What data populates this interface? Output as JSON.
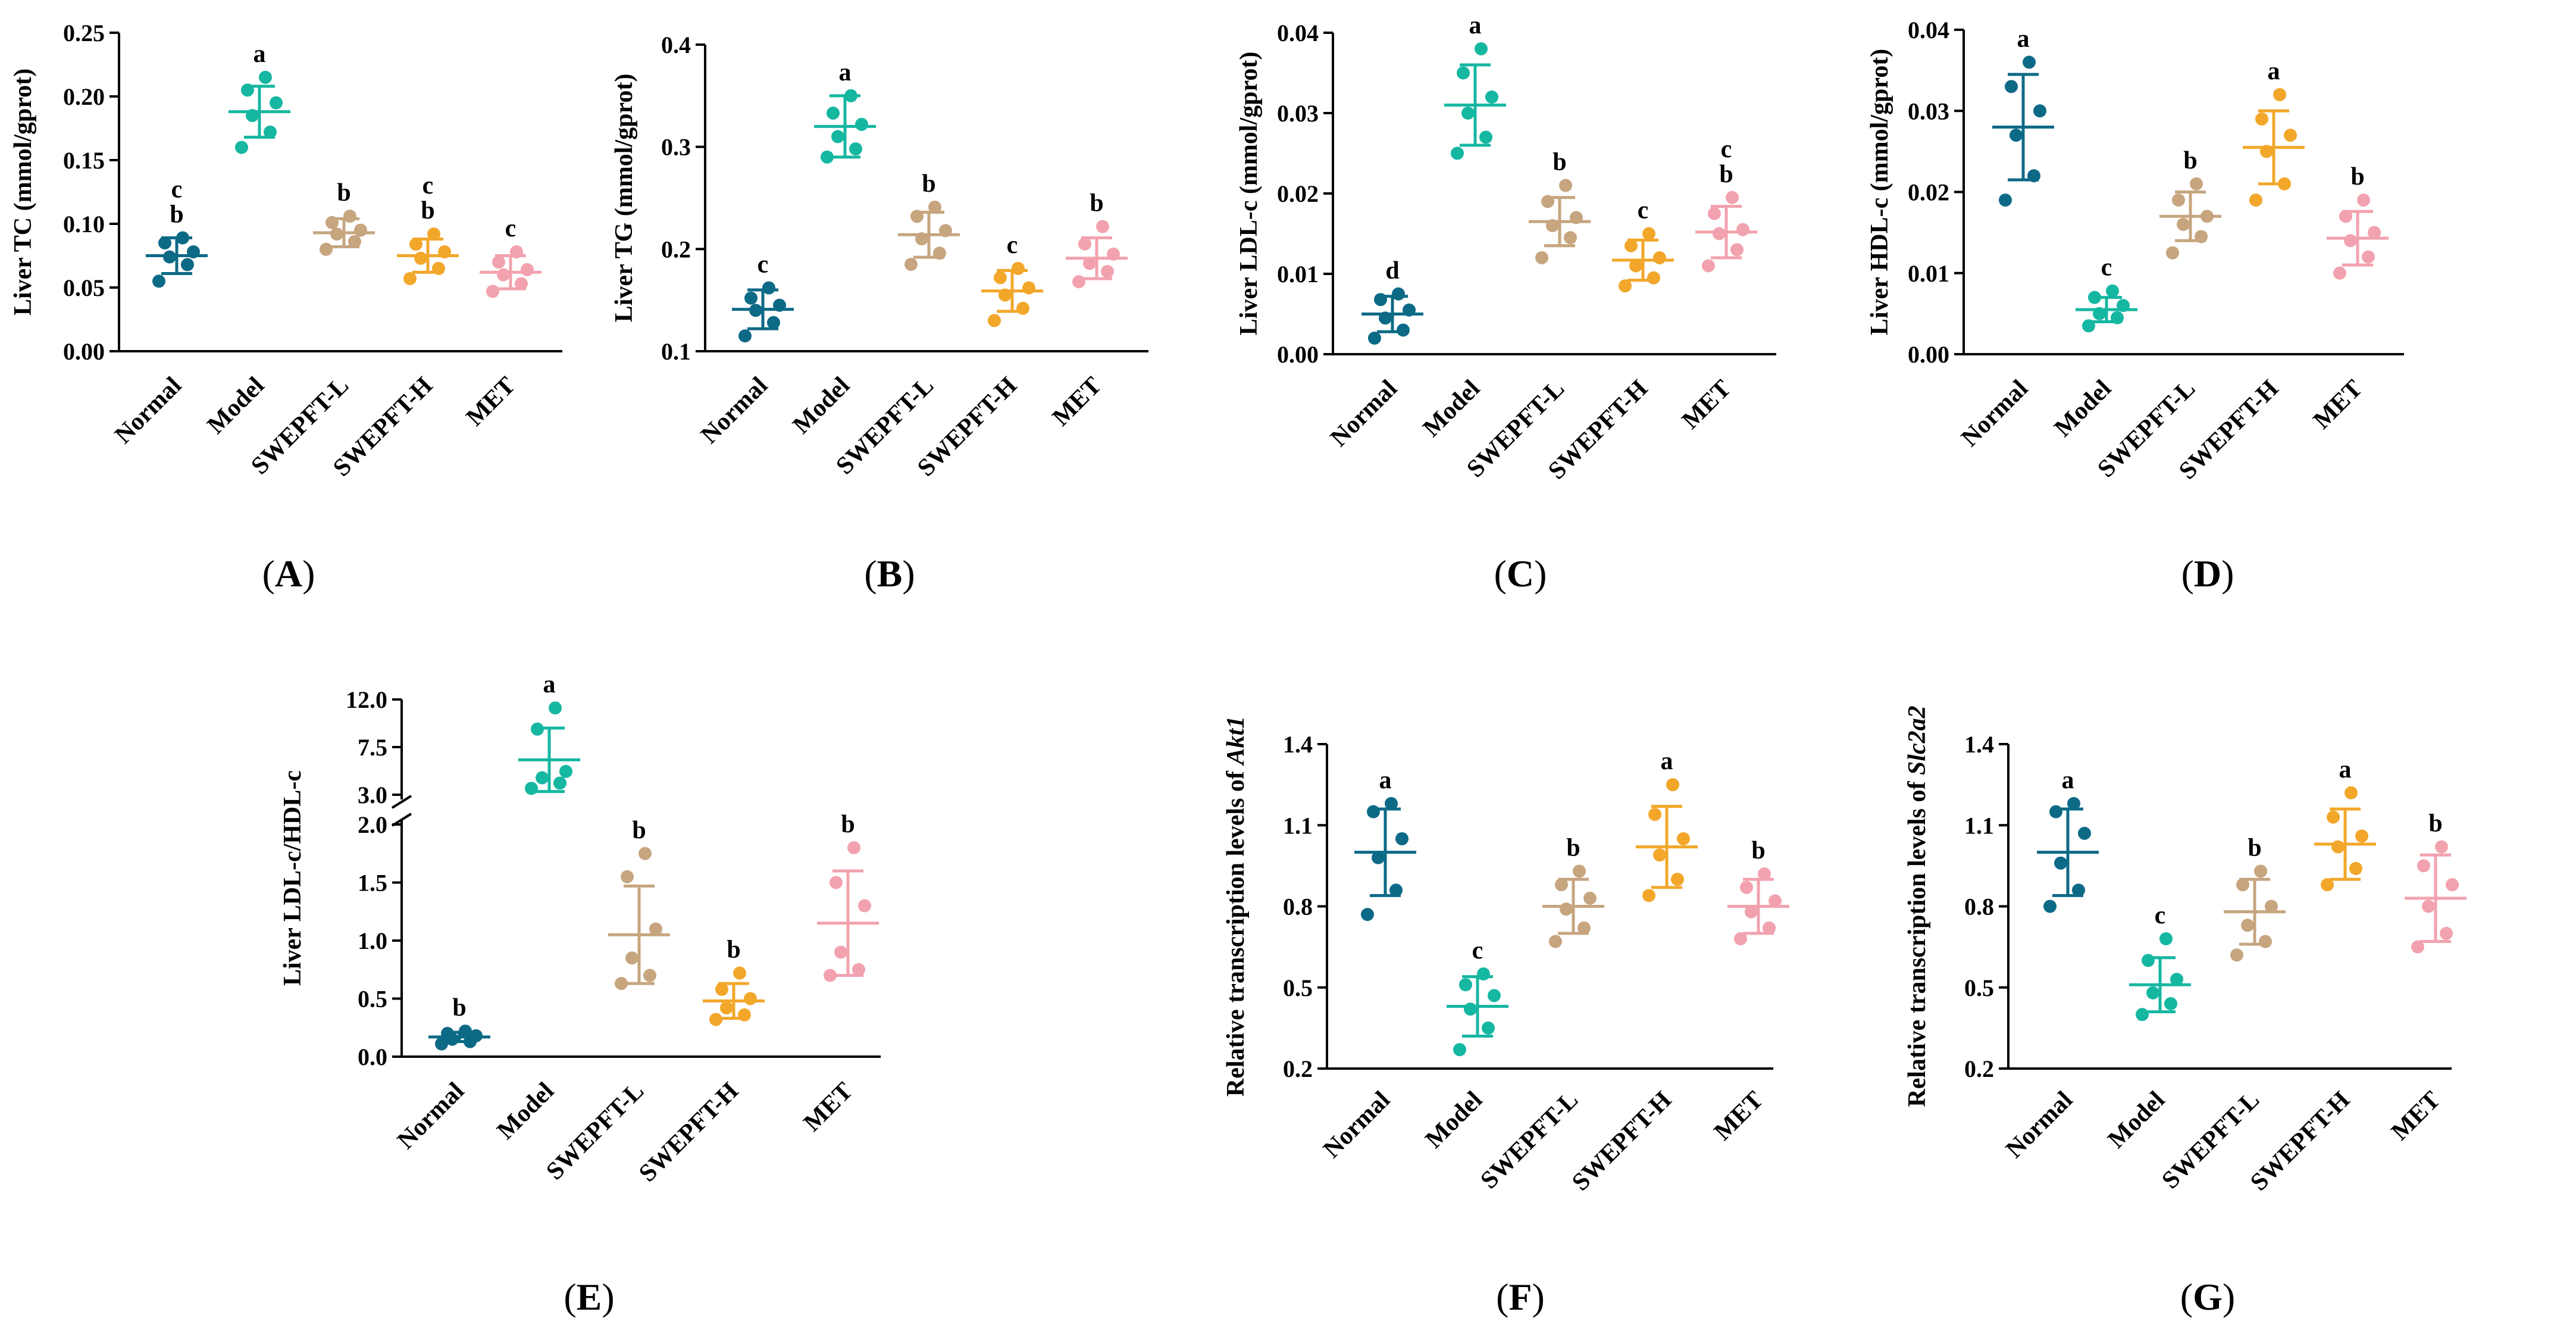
{
  "figure": {
    "group_colors": {
      "Normal": "#0d6a86",
      "Model": "#16b7a1",
      "SWEPFT-L": "#c6a57f",
      "SWEPFT-H": "#f2a72a",
      "MET": "#f2a2ae"
    }
  },
  "chart_data": [
    {
      "panel": "A",
      "type": "scatter",
      "ylabel": "Liver TC (mmol/gprot)",
      "ylim": [
        0,
        0.25
      ],
      "yticks": [
        "0.00",
        "0.05",
        "0.10",
        "0.15",
        "0.20",
        "0.25"
      ],
      "categories": [
        "Normal",
        "Model",
        "SWEPFT-L",
        "SWEPFT-H",
        "MET"
      ],
      "groups": [
        {
          "name": "Normal",
          "mean": 0.075,
          "sd": 0.014,
          "points": [
            0.055,
            0.068,
            0.074,
            0.078,
            0.085,
            0.089
          ],
          "sig": [
            "c",
            "b"
          ]
        },
        {
          "name": "Model",
          "mean": 0.188,
          "sd": 0.02,
          "points": [
            0.16,
            0.172,
            0.185,
            0.195,
            0.205,
            0.215
          ],
          "sig": [
            "a"
          ]
        },
        {
          "name": "SWEPFT-L",
          "mean": 0.093,
          "sd": 0.011,
          "points": [
            0.08,
            0.086,
            0.092,
            0.095,
            0.101,
            0.106
          ],
          "sig": [
            "b"
          ]
        },
        {
          "name": "SWEPFT-H",
          "mean": 0.075,
          "sd": 0.013,
          "points": [
            0.057,
            0.065,
            0.073,
            0.078,
            0.084,
            0.092
          ],
          "sig": [
            "c",
            "b"
          ]
        },
        {
          "name": "MET",
          "mean": 0.062,
          "sd": 0.013,
          "points": [
            0.047,
            0.053,
            0.06,
            0.064,
            0.07,
            0.078
          ],
          "sig": [
            "c"
          ]
        }
      ]
    },
    {
      "panel": "B",
      "type": "scatter",
      "ylabel": "Liver TG (mmol/gprot)",
      "ylim": [
        0.1,
        0.4
      ],
      "yticks": [
        "0.1",
        "0.2",
        "0.3",
        "0.4"
      ],
      "categories": [
        "Normal",
        "Model",
        "SWEPFT-L",
        "SWEPFT-H",
        "MET"
      ],
      "groups": [
        {
          "name": "Normal",
          "mean": 0.141,
          "sd": 0.019,
          "points": [
            0.115,
            0.128,
            0.14,
            0.145,
            0.152,
            0.162
          ],
          "sig": [
            "c"
          ]
        },
        {
          "name": "Model",
          "mean": 0.32,
          "sd": 0.03,
          "points": [
            0.29,
            0.298,
            0.31,
            0.322,
            0.333,
            0.35
          ],
          "sig": [
            "a"
          ]
        },
        {
          "name": "SWEPFT-L",
          "mean": 0.214,
          "sd": 0.022,
          "points": [
            0.185,
            0.196,
            0.21,
            0.218,
            0.232,
            0.241
          ],
          "sig": [
            "b"
          ]
        },
        {
          "name": "SWEPFT-H",
          "mean": 0.159,
          "sd": 0.02,
          "points": [
            0.13,
            0.142,
            0.155,
            0.162,
            0.172,
            0.181
          ],
          "sig": [
            "c"
          ]
        },
        {
          "name": "MET",
          "mean": 0.191,
          "sd": 0.02,
          "points": [
            0.168,
            0.178,
            0.186,
            0.195,
            0.205,
            0.222
          ],
          "sig": [
            "b"
          ]
        }
      ]
    },
    {
      "panel": "C",
      "type": "scatter",
      "ylabel": "Liver LDL-c (mmol/gprot)",
      "ylim": [
        0,
        0.04
      ],
      "yticks": [
        "0.00",
        "0.01",
        "0.02",
        "0.03",
        "0.04"
      ],
      "categories": [
        "Normal",
        "Model",
        "SWEPFT-L",
        "SWEPFT-H",
        "MET"
      ],
      "groups": [
        {
          "name": "Normal",
          "mean": 0.005,
          "sd": 0.0022,
          "points": [
            0.002,
            0.003,
            0.0045,
            0.0055,
            0.0068,
            0.0075
          ],
          "sig": [
            "d"
          ]
        },
        {
          "name": "Model",
          "mean": 0.031,
          "sd": 0.005,
          "points": [
            0.025,
            0.027,
            0.03,
            0.032,
            0.035,
            0.038
          ],
          "sig": [
            "a"
          ]
        },
        {
          "name": "SWEPFT-L",
          "mean": 0.0165,
          "sd": 0.003,
          "points": [
            0.012,
            0.0145,
            0.016,
            0.017,
            0.019,
            0.021
          ],
          "sig": [
            "b"
          ]
        },
        {
          "name": "SWEPFT-H",
          "mean": 0.0117,
          "sd": 0.0025,
          "points": [
            0.0085,
            0.0095,
            0.011,
            0.012,
            0.0135,
            0.015
          ],
          "sig": [
            "c"
          ]
        },
        {
          "name": "MET",
          "mean": 0.0152,
          "sd": 0.0032,
          "points": [
            0.011,
            0.013,
            0.015,
            0.0155,
            0.0175,
            0.0195
          ],
          "sig": [
            "c",
            "b"
          ]
        }
      ]
    },
    {
      "panel": "D",
      "type": "scatter",
      "ylabel": "Liver HDL-c (mmol/gprot)",
      "ylim": [
        0,
        0.04
      ],
      "yticks": [
        "0.00",
        "0.01",
        "0.02",
        "0.03",
        "0.04"
      ],
      "categories": [
        "Normal",
        "Model",
        "SWEPFT-L",
        "SWEPFT-H",
        "MET"
      ],
      "groups": [
        {
          "name": "Normal",
          "mean": 0.028,
          "sd": 0.0065,
          "points": [
            0.019,
            0.022,
            0.027,
            0.03,
            0.033,
            0.036
          ],
          "sig": [
            "a"
          ]
        },
        {
          "name": "Model",
          "mean": 0.0055,
          "sd": 0.0015,
          "points": [
            0.0035,
            0.0045,
            0.005,
            0.006,
            0.007,
            0.0078
          ],
          "sig": [
            "c"
          ]
        },
        {
          "name": "SWEPFT-L",
          "mean": 0.017,
          "sd": 0.003,
          "points": [
            0.0125,
            0.0145,
            0.016,
            0.017,
            0.019,
            0.021
          ],
          "sig": [
            "b"
          ]
        },
        {
          "name": "SWEPFT-H",
          "mean": 0.0255,
          "sd": 0.0045,
          "points": [
            0.019,
            0.021,
            0.025,
            0.027,
            0.029,
            0.032
          ],
          "sig": [
            "a"
          ]
        },
        {
          "name": "MET",
          "mean": 0.0143,
          "sd": 0.0033,
          "points": [
            0.01,
            0.012,
            0.014,
            0.015,
            0.017,
            0.019
          ],
          "sig": [
            "b"
          ]
        }
      ]
    },
    {
      "panel": "E",
      "type": "scatter",
      "ylabel": "Liver LDL-c/HDL-c",
      "axis_break": true,
      "ylim_lower": [
        0,
        2.0
      ],
      "ylim_upper": [
        3.0,
        12.0
      ],
      "yticks_lower": [
        "0.0",
        "0.5",
        "1.0",
        "1.5",
        "2.0"
      ],
      "yticks_upper": [
        "3.0",
        "7.5",
        "12.0"
      ],
      "categories": [
        "Normal",
        "Model",
        "SWEPFT-L",
        "SWEPFT-H",
        "MET"
      ],
      "groups": [
        {
          "name": "Normal",
          "mean": 0.17,
          "sd": 0.04,
          "points": [
            0.11,
            0.13,
            0.15,
            0.18,
            0.2,
            0.22
          ],
          "sig": [
            "b"
          ]
        },
        {
          "name": "Model",
          "mean": 6.3,
          "sd": 3.0,
          "points": [
            3.6,
            4.1,
            4.6,
            5.2,
            9.2,
            11.2
          ],
          "sig": [
            "a"
          ]
        },
        {
          "name": "SWEPFT-L",
          "mean": 1.05,
          "sd": 0.42,
          "points": [
            0.63,
            0.7,
            0.85,
            1.1,
            1.55,
            1.75
          ],
          "sig": [
            "b"
          ]
        },
        {
          "name": "SWEPFT-H",
          "mean": 0.48,
          "sd": 0.15,
          "points": [
            0.32,
            0.36,
            0.42,
            0.5,
            0.58,
            0.72
          ],
          "sig": [
            "b"
          ]
        },
        {
          "name": "MET",
          "mean": 1.15,
          "sd": 0.45,
          "points": [
            0.7,
            0.75,
            0.9,
            1.3,
            1.5,
            1.8
          ],
          "sig": [
            "b"
          ]
        }
      ]
    },
    {
      "panel": "F",
      "type": "scatter",
      "ylabel_prefix": "Relative transcription levels of ",
      "ylabel_gene": "Akt1",
      "ylim": [
        0.2,
        1.4
      ],
      "yticks": [
        "0.2",
        "0.5",
        "0.8",
        "1.1",
        "1.4"
      ],
      "categories": [
        "Normal",
        "Model",
        "SWEPFT-L",
        "SWEPFT-H",
        "MET"
      ],
      "groups": [
        {
          "name": "Normal",
          "mean": 1.0,
          "sd": 0.16,
          "points": [
            0.77,
            0.86,
            0.98,
            1.05,
            1.15,
            1.18
          ],
          "sig": [
            "a"
          ]
        },
        {
          "name": "Model",
          "mean": 0.43,
          "sd": 0.11,
          "points": [
            0.27,
            0.35,
            0.42,
            0.47,
            0.51,
            0.55
          ],
          "sig": [
            "c"
          ]
        },
        {
          "name": "SWEPFT-L",
          "mean": 0.8,
          "sd": 0.1,
          "points": [
            0.67,
            0.72,
            0.79,
            0.83,
            0.88,
            0.93
          ],
          "sig": [
            "b"
          ]
        },
        {
          "name": "SWEPFT-H",
          "mean": 1.02,
          "sd": 0.15,
          "points": [
            0.84,
            0.9,
            0.99,
            1.05,
            1.14,
            1.25
          ],
          "sig": [
            "a"
          ]
        },
        {
          "name": "MET",
          "mean": 0.8,
          "sd": 0.1,
          "points": [
            0.68,
            0.72,
            0.78,
            0.82,
            0.87,
            0.92
          ],
          "sig": [
            "b"
          ]
        }
      ]
    },
    {
      "panel": "G",
      "type": "scatter",
      "ylabel_prefix": "Relative transcription levels of ",
      "ylabel_gene": "Slc2a2",
      "ylim": [
        0.2,
        1.4
      ],
      "yticks": [
        "0.2",
        "0.5",
        "0.8",
        "1.1",
        "1.4"
      ],
      "categories": [
        "Normal",
        "Model",
        "SWEPFT-L",
        "SWEPFT-H",
        "MET"
      ],
      "groups": [
        {
          "name": "Normal",
          "mean": 1.0,
          "sd": 0.16,
          "points": [
            0.8,
            0.86,
            0.96,
            1.07,
            1.15,
            1.18
          ],
          "sig": [
            "a"
          ]
        },
        {
          "name": "Model",
          "mean": 0.51,
          "sd": 0.1,
          "points": [
            0.4,
            0.44,
            0.48,
            0.53,
            0.6,
            0.68
          ],
          "sig": [
            "c"
          ]
        },
        {
          "name": "SWEPFT-L",
          "mean": 0.78,
          "sd": 0.12,
          "points": [
            0.62,
            0.67,
            0.73,
            0.8,
            0.88,
            0.93
          ],
          "sig": [
            "b"
          ]
        },
        {
          "name": "SWEPFT-H",
          "mean": 1.03,
          "sd": 0.13,
          "points": [
            0.88,
            0.94,
            1.02,
            1.06,
            1.13,
            1.22
          ],
          "sig": [
            "a"
          ]
        },
        {
          "name": "MET",
          "mean": 0.83,
          "sd": 0.16,
          "points": [
            0.65,
            0.7,
            0.8,
            0.88,
            0.95,
            1.02
          ],
          "sig": [
            "b"
          ]
        }
      ]
    }
  ]
}
